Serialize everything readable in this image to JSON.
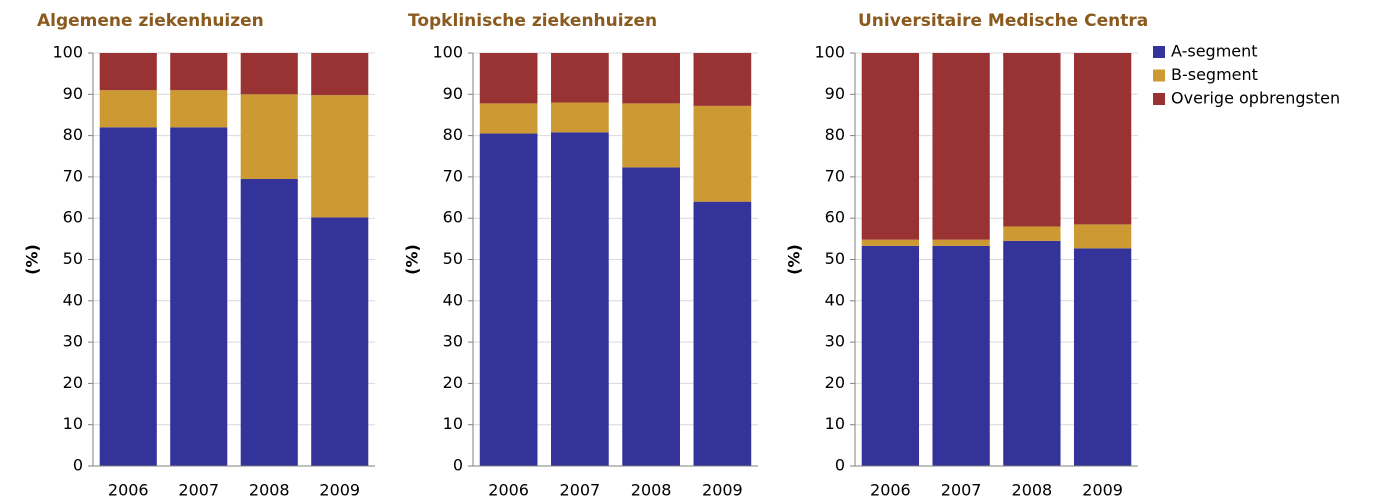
{
  "chart_data": [
    {
      "type": "stacked-bar",
      "title": "Algemene ziekenhuizen",
      "y_label": "(%)",
      "categories": [
        "2006",
        "2007",
        "2008",
        "2009"
      ],
      "ylim": [
        0,
        100
      ],
      "yticks": [
        0,
        10,
        20,
        30,
        40,
        50,
        60,
        70,
        80,
        90,
        100
      ],
      "grid": true,
      "series": [
        {
          "color": "#333399",
          "values": [
            82,
            82,
            69.5,
            60.2
          ]
        },
        {
          "color": "#cc9933",
          "values": [
            9,
            9,
            20.5,
            29.6
          ]
        },
        {
          "color": "#993333",
          "values": [
            9,
            9,
            10,
            10.2
          ]
        }
      ]
    },
    {
      "type": "stacked-bar",
      "title": "Topklinische ziekenhuizen",
      "y_label": "(%)",
      "categories": [
        "2006",
        "2007",
        "2008",
        "2009"
      ],
      "ylim": [
        0,
        100
      ],
      "yticks": [
        0,
        10,
        20,
        30,
        40,
        50,
        60,
        70,
        80,
        90,
        100
      ],
      "grid": true,
      "series": [
        {
          "color": "#333399",
          "values": [
            80.5,
            80.8,
            72.3,
            64
          ]
        },
        {
          "color": "#cc9933",
          "values": [
            7.3,
            7.2,
            15.5,
            23.2
          ]
        },
        {
          "color": "#993333",
          "values": [
            12.2,
            12,
            12.2,
            12.8
          ]
        }
      ]
    },
    {
      "type": "stacked-bar",
      "title": "Universitaire Medische Centra",
      "y_label": "(%)",
      "categories": [
        "2006",
        "2007",
        "2008",
        "2009"
      ],
      "ylim": [
        0,
        100
      ],
      "yticks": [
        0,
        10,
        20,
        30,
        40,
        50,
        60,
        70,
        80,
        90,
        100
      ],
      "grid": true,
      "legend": "right",
      "series": [
        {
          "name": "A-segment",
          "color": "#333399",
          "values": [
            53.3,
            53.3,
            54.5,
            52.7
          ]
        },
        {
          "name": "B-segment",
          "color": "#cc9933",
          "values": [
            1.5,
            1.5,
            3.5,
            5.8
          ]
        },
        {
          "name": "Overige opbrengsten",
          "color": "#993333",
          "values": [
            45.2,
            45.2,
            42,
            41.5
          ]
        }
      ]
    }
  ]
}
